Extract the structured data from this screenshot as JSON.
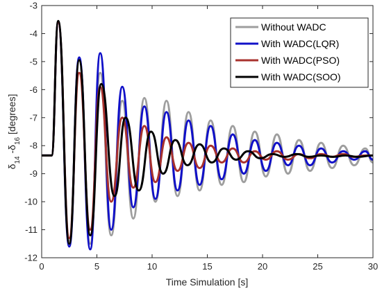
{
  "chart_data": {
    "type": "line",
    "xlabel": "Time Simulation [s]",
    "ylabel": {
      "d1": "14",
      "sep": " -",
      "d2": "16",
      "unit": " [degrees]"
    },
    "xlim": [
      0,
      30
    ],
    "ylim": [
      -12,
      -3
    ],
    "xticks": [
      "0",
      "5",
      "10",
      "15",
      "20",
      "25",
      "30"
    ],
    "yticks": [
      "-3",
      "-4",
      "-5",
      "-6",
      "-7",
      "-8",
      "-9",
      "-10",
      "-11",
      "-12"
    ],
    "grid": false,
    "legend_position": "top-right",
    "series": [
      {
        "name": "Without WADC",
        "color": "#9e9e9e",
        "points": [
          [
            0,
            -8.35
          ],
          [
            0.9,
            -8.35
          ],
          [
            1.5,
            -3.6
          ],
          [
            2.5,
            -11.4
          ],
          [
            3.4,
            -4.9
          ],
          [
            4.4,
            -11.5
          ],
          [
            5.3,
            -5.4
          ],
          [
            6.3,
            -11.2
          ],
          [
            7.3,
            -6.4
          ],
          [
            8.3,
            -10.6
          ],
          [
            9.3,
            -6.3
          ],
          [
            10.3,
            -10.0
          ],
          [
            11.3,
            -6.4
          ],
          [
            12.3,
            -9.8
          ],
          [
            13.3,
            -6.8
          ],
          [
            14.3,
            -9.6
          ],
          [
            15.3,
            -7.1
          ],
          [
            16.3,
            -9.4
          ],
          [
            17.3,
            -7.3
          ],
          [
            18.3,
            -9.3
          ],
          [
            19.3,
            -7.5
          ],
          [
            20.3,
            -9.1
          ],
          [
            21.3,
            -7.6
          ],
          [
            22.3,
            -9.0
          ],
          [
            23.3,
            -7.8
          ],
          [
            24.3,
            -8.9
          ],
          [
            25.3,
            -7.9
          ],
          [
            26.3,
            -8.8
          ],
          [
            27.3,
            -8.0
          ],
          [
            28.3,
            -8.7
          ],
          [
            29.3,
            -8.1
          ],
          [
            30,
            -8.6
          ]
        ]
      },
      {
        "name": "With WADC(LQR)",
        "color": "#1010c8",
        "points": [
          [
            0,
            -8.35
          ],
          [
            0.9,
            -8.35
          ],
          [
            1.5,
            -3.6
          ],
          [
            2.5,
            -11.6
          ],
          [
            3.4,
            -4.85
          ],
          [
            4.4,
            -11.7
          ],
          [
            5.3,
            -4.7
          ],
          [
            6.3,
            -11.0
          ],
          [
            7.3,
            -5.9
          ],
          [
            8.3,
            -10.2
          ],
          [
            9.3,
            -6.6
          ],
          [
            10.3,
            -9.9
          ],
          [
            11.3,
            -6.8
          ],
          [
            12.3,
            -9.6
          ],
          [
            13.3,
            -7.1
          ],
          [
            14.3,
            -9.4
          ],
          [
            15.3,
            -7.3
          ],
          [
            16.3,
            -9.2
          ],
          [
            17.3,
            -7.6
          ],
          [
            18.3,
            -9.0
          ],
          [
            19.3,
            -7.8
          ],
          [
            20.3,
            -8.9
          ],
          [
            21.3,
            -7.9
          ],
          [
            22.3,
            -8.7
          ],
          [
            23.3,
            -8.0
          ],
          [
            24.3,
            -8.7
          ],
          [
            25.3,
            -8.1
          ],
          [
            26.3,
            -8.6
          ],
          [
            27.3,
            -8.2
          ],
          [
            28.3,
            -8.5
          ],
          [
            29.3,
            -8.2
          ],
          [
            30,
            -8.5
          ]
        ]
      },
      {
        "name": "With WADC(PSO)",
        "color": "#a8322d",
        "points": [
          [
            0,
            -8.35
          ],
          [
            0.9,
            -8.35
          ],
          [
            1.5,
            -3.6
          ],
          [
            2.5,
            -11.3
          ],
          [
            3.4,
            -5.4
          ],
          [
            4.4,
            -11.0
          ],
          [
            5.3,
            -5.9
          ],
          [
            6.3,
            -10.0
          ],
          [
            7.3,
            -7.0
          ],
          [
            8.3,
            -9.5
          ],
          [
            9.3,
            -7.3
          ],
          [
            10.3,
            -9.3
          ],
          [
            11.3,
            -7.7
          ],
          [
            12.3,
            -8.9
          ],
          [
            13.3,
            -7.9
          ],
          [
            14.3,
            -8.8
          ],
          [
            15.3,
            -8.0
          ],
          [
            16.3,
            -8.6
          ],
          [
            17.3,
            -8.1
          ],
          [
            18.3,
            -8.6
          ],
          [
            19.3,
            -8.2
          ],
          [
            20.3,
            -8.5
          ],
          [
            21.3,
            -8.2
          ],
          [
            22.3,
            -8.5
          ],
          [
            23.3,
            -8.3
          ],
          [
            24.3,
            -8.45
          ],
          [
            25.3,
            -8.3
          ],
          [
            26.3,
            -8.4
          ],
          [
            27.3,
            -8.3
          ],
          [
            28.3,
            -8.4
          ],
          [
            29.3,
            -8.35
          ],
          [
            30,
            -8.35
          ]
        ]
      },
      {
        "name": "With WADC(SOO)",
        "color": "#000000",
        "points": [
          [
            0,
            -8.35
          ],
          [
            0.9,
            -8.35
          ],
          [
            1.5,
            -3.55
          ],
          [
            2.5,
            -11.5
          ],
          [
            3.4,
            -4.95
          ],
          [
            4.4,
            -11.2
          ],
          [
            5.4,
            -5.8
          ],
          [
            6.6,
            -9.8
          ],
          [
            7.6,
            -7.0
          ],
          [
            8.8,
            -9.6
          ],
          [
            9.9,
            -7.5
          ],
          [
            11.0,
            -9.0
          ],
          [
            12.1,
            -7.8
          ],
          [
            13.2,
            -8.7
          ],
          [
            14.3,
            -7.95
          ],
          [
            15.4,
            -8.6
          ],
          [
            16.5,
            -8.1
          ],
          [
            17.6,
            -8.5
          ],
          [
            18.7,
            -8.2
          ],
          [
            19.8,
            -8.45
          ],
          [
            20.9,
            -8.3
          ],
          [
            22.0,
            -8.4
          ],
          [
            23.1,
            -8.3
          ],
          [
            24.2,
            -8.4
          ],
          [
            25.3,
            -8.35
          ],
          [
            26.4,
            -8.4
          ],
          [
            27.5,
            -8.35
          ],
          [
            28.6,
            -8.4
          ],
          [
            30,
            -8.35
          ]
        ]
      }
    ]
  }
}
